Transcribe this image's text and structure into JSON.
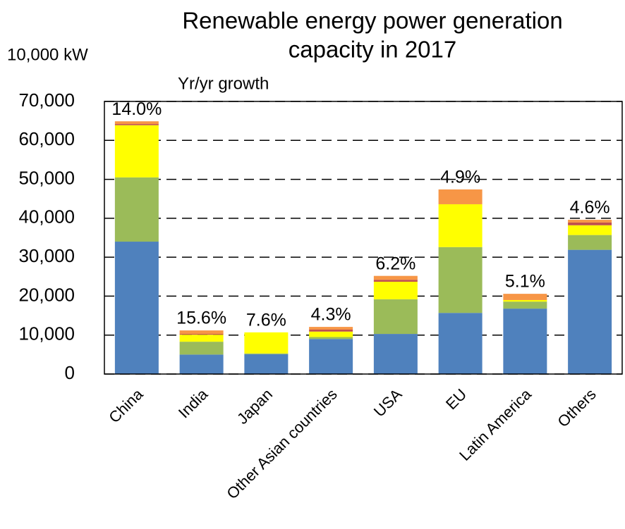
{
  "chart_data": {
    "type": "stacked_bar",
    "title": [
      "Renewable energy power generation",
      "capacity in 2017"
    ],
    "unit_label": "10,000 kW",
    "annotation_title": "Yr/yr growth",
    "categories": [
      "China",
      "India",
      "Japan",
      "Other Asian countries",
      "USA",
      "EU",
      "Latin America",
      "Others"
    ],
    "growth_labels": [
      "14.0%",
      "15.6%",
      "7.6%",
      "4.3%",
      "6.2%",
      "4.9%",
      "5.1%",
      "4.6%"
    ],
    "series": [
      {
        "color": "#4f81bd",
        "values": [
          34000,
          5000,
          5100,
          9000,
          10300,
          15700,
          16800,
          31900
        ]
      },
      {
        "color": "#9bbb59",
        "values": [
          16500,
          3300,
          200,
          500,
          8900,
          16900,
          1800,
          3800
        ]
      },
      {
        "color": "#ffff00",
        "values": [
          13400,
          1800,
          5400,
          1400,
          4500,
          11000,
          400,
          2500
        ]
      },
      {
        "color": "#c0504d",
        "values": [
          300,
          200,
          0,
          500,
          500,
          0,
          0,
          700
        ]
      },
      {
        "color": "#f79646",
        "values": [
          700,
          900,
          0,
          700,
          1000,
          3800,
          1600,
          700
        ]
      }
    ],
    "ylim": [
      0,
      70000
    ],
    "yticks": [
      0,
      {
        "value": 10000,
        "label": "10,000"
      },
      {
        "value": 20000,
        "label": "20,000"
      },
      {
        "value": 30000,
        "label": "30,000"
      },
      {
        "value": 40000,
        "label": "40,000"
      },
      {
        "value": 50000,
        "label": "50,000"
      },
      {
        "value": 60000,
        "label": "60,000"
      },
      {
        "value": 70000,
        "label": "70,000"
      }
    ],
    "grid": true
  }
}
